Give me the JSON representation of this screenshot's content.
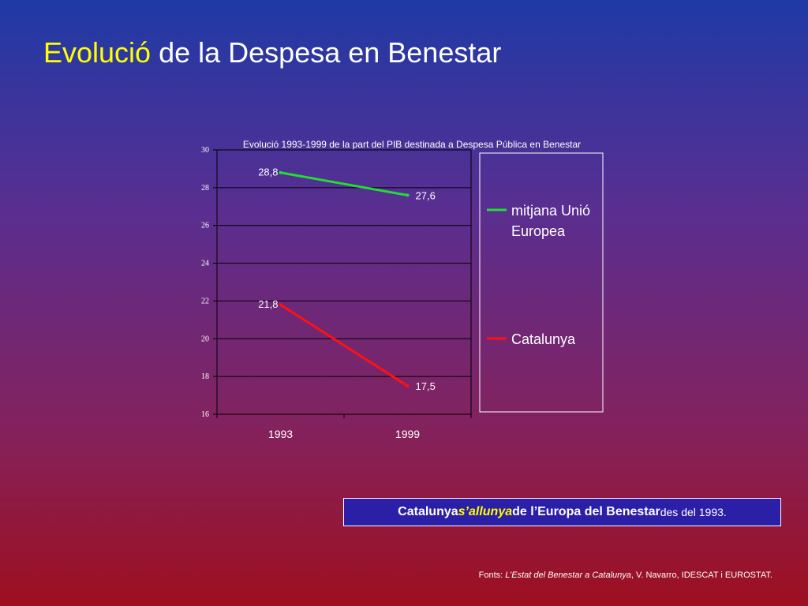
{
  "slide": {
    "title_highlight": "Evolució",
    "title_rest": " de la Despesa en Benestar"
  },
  "chart_data": {
    "type": "line",
    "title": "Evolució 1993-1999 de la part del PIB destinada a Despesa Pública en Benestar",
    "x": [
      "1993",
      "1999"
    ],
    "ylim": [
      16,
      30
    ],
    "yticks": [
      "30",
      "28",
      "26",
      "24",
      "22",
      "20",
      "18",
      "16"
    ],
    "grid": true,
    "legend_position": "right",
    "series": [
      {
        "name": "mitjana Unió Europea",
        "legend_lines": [
          "mitjana Unió",
          "Europea"
        ],
        "values": [
          28.8,
          27.6
        ],
        "labels": [
          "28,8",
          "27,6"
        ],
        "color": "#22dd33"
      },
      {
        "name": "Catalunya",
        "legend_lines": [
          "Catalunya"
        ],
        "values": [
          21.8,
          17.5
        ],
        "labels": [
          "21,8",
          "17,5"
        ],
        "color": "#ff1111"
      }
    ]
  },
  "callout": {
    "part1": "Catalunya ",
    "part2": "s’allunya",
    "part3": " de l’Europa del Benestar",
    "part4": " des del 1993."
  },
  "sources": {
    "prefix": "Fonts:  ",
    "title": "L’Estat del Benestar a Catalunya",
    "rest": ", V. Navarro, IDESCAT i EUROSTAT."
  }
}
